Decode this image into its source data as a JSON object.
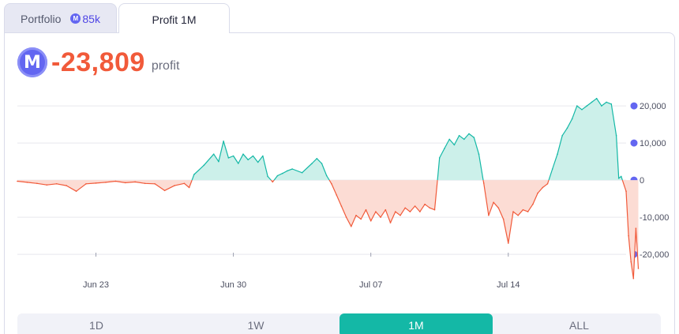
{
  "tabs": {
    "portfolio_label": "Portfolio",
    "portfolio_value": "85k",
    "profit_label": "Profit 1M"
  },
  "headline": {
    "amount": "-23,809",
    "suffix": "profit"
  },
  "colors": {
    "positive": "#14b8a6",
    "positive_fill": "#ccf0ea",
    "negative": "#f15a3a",
    "negative_fill": "#fcdcd4",
    "mana": "#6366f1"
  },
  "icons": {
    "currency": "mana-coin-icon"
  },
  "range_buttons": [
    {
      "label": "1D",
      "active": false
    },
    {
      "label": "1W",
      "active": false
    },
    {
      "label": "1M",
      "active": true
    },
    {
      "label": "ALL",
      "active": false
    }
  ],
  "chart_data": {
    "type": "area",
    "title": "",
    "xlabel": "",
    "ylabel": "",
    "x_start": "2024-06-19",
    "x_end": "2024-07-20",
    "x_ticks": [
      {
        "label": "Jun 23",
        "x": "2024-06-23"
      },
      {
        "label": "Jun 30",
        "x": "2024-06-30"
      },
      {
        "label": "Jul 07",
        "x": "2024-07-07"
      },
      {
        "label": "Jul 14",
        "x": "2024-07-14"
      }
    ],
    "y_ticks": [
      {
        "label": "20,000",
        "value": 20000
      },
      {
        "label": "10,000",
        "value": 10000
      },
      {
        "label": "0",
        "value": 0
      },
      {
        "label": "-10,000",
        "value": -10000
      },
      {
        "label": "-20,000",
        "value": -20000
      }
    ],
    "ylim": [
      -27000,
      23000
    ],
    "grid": true,
    "baseline": 0,
    "series": [
      {
        "points": [
          [
            "2024-06-19",
            -300
          ],
          [
            "2024-06-19 12:00",
            -600
          ],
          [
            "2024-06-20",
            -900
          ],
          [
            "2024-06-20 12:00",
            -1300
          ],
          [
            "2024-06-21",
            -1000
          ],
          [
            "2024-06-21 12:00",
            -1500
          ],
          [
            "2024-06-22",
            -3000
          ],
          [
            "2024-06-22 12:00",
            -1000
          ],
          [
            "2024-06-23",
            -800
          ],
          [
            "2024-06-23 12:00",
            -600
          ],
          [
            "2024-06-24",
            -300
          ],
          [
            "2024-06-24 12:00",
            -700
          ],
          [
            "2024-06-25",
            -500
          ],
          [
            "2024-06-25 12:00",
            -900
          ],
          [
            "2024-06-26",
            -1000
          ],
          [
            "2024-06-26 12:00",
            -2800
          ],
          [
            "2024-06-27",
            -1500
          ],
          [
            "2024-06-27 12:00",
            -900
          ],
          [
            "2024-06-27 18:00",
            -2000
          ],
          [
            "2024-06-28",
            1500
          ],
          [
            "2024-06-28 12:00",
            4000
          ],
          [
            "2024-06-29",
            7000
          ],
          [
            "2024-06-29 06:00",
            5000
          ],
          [
            "2024-06-29 12:00",
            10500
          ],
          [
            "2024-06-29 18:00",
            6000
          ],
          [
            "2024-06-30",
            6500
          ],
          [
            "2024-06-30 06:00",
            4500
          ],
          [
            "2024-06-30 12:00",
            7000
          ],
          [
            "2024-06-30 18:00",
            5500
          ],
          [
            "2024-07-01",
            6500
          ],
          [
            "2024-07-01 06:00",
            4800
          ],
          [
            "2024-07-01 12:00",
            6500
          ],
          [
            "2024-07-01 18:00",
            1000
          ],
          [
            "2024-07-02",
            -500
          ],
          [
            "2024-07-02 06:00",
            1200
          ],
          [
            "2024-07-02 12:00",
            1800
          ],
          [
            "2024-07-02 18:00",
            2500
          ],
          [
            "2024-07-03",
            3000
          ],
          [
            "2024-07-03 12:00",
            2000
          ],
          [
            "2024-07-04",
            4500
          ],
          [
            "2024-07-04 06:00",
            5800
          ],
          [
            "2024-07-04 12:00",
            4500
          ],
          [
            "2024-07-04 18:00",
            1200
          ],
          [
            "2024-07-05",
            -1000
          ],
          [
            "2024-07-05 06:00",
            -4000
          ],
          [
            "2024-07-05 12:00",
            -7000
          ],
          [
            "2024-07-05 18:00",
            -10000
          ],
          [
            "2024-07-06",
            -12500
          ],
          [
            "2024-07-06 06:00",
            -9500
          ],
          [
            "2024-07-06 12:00",
            -10500
          ],
          [
            "2024-07-06 18:00",
            -8000
          ],
          [
            "2024-07-07",
            -11000
          ],
          [
            "2024-07-07 06:00",
            -8500
          ],
          [
            "2024-07-07 12:00",
            -10000
          ],
          [
            "2024-07-07 18:00",
            -8000
          ],
          [
            "2024-07-08",
            -11500
          ],
          [
            "2024-07-08 06:00",
            -8500
          ],
          [
            "2024-07-08 12:00",
            -9500
          ],
          [
            "2024-07-08 18:00",
            -7500
          ],
          [
            "2024-07-09",
            -8500
          ],
          [
            "2024-07-09 06:00",
            -7000
          ],
          [
            "2024-07-09 12:00",
            -8500
          ],
          [
            "2024-07-09 18:00",
            -6500
          ],
          [
            "2024-07-10",
            -7500
          ],
          [
            "2024-07-10 06:00",
            -8000
          ],
          [
            "2024-07-10 12:00",
            6000
          ],
          [
            "2024-07-10 18:00",
            8500
          ],
          [
            "2024-07-11",
            11000
          ],
          [
            "2024-07-11 06:00",
            9500
          ],
          [
            "2024-07-11 12:00",
            12000
          ],
          [
            "2024-07-11 18:00",
            11000
          ],
          [
            "2024-07-12",
            12500
          ],
          [
            "2024-07-12 06:00",
            11500
          ],
          [
            "2024-07-12 12:00",
            7000
          ],
          [
            "2024-07-12 18:00",
            -800
          ],
          [
            "2024-07-13",
            -9500
          ],
          [
            "2024-07-13 06:00",
            -6000
          ],
          [
            "2024-07-13 12:00",
            -7500
          ],
          [
            "2024-07-13 18:00",
            -10500
          ],
          [
            "2024-07-14",
            -17000
          ],
          [
            "2024-07-14 06:00",
            -8500
          ],
          [
            "2024-07-14 12:00",
            -9500
          ],
          [
            "2024-07-14 18:00",
            -8000
          ],
          [
            "2024-07-15",
            -8500
          ],
          [
            "2024-07-15 06:00",
            -6500
          ],
          [
            "2024-07-15 12:00",
            -3500
          ],
          [
            "2024-07-15 18:00",
            -2000
          ],
          [
            "2024-07-16",
            -1000
          ],
          [
            "2024-07-16 06:00",
            3000
          ],
          [
            "2024-07-16 12:00",
            7000
          ],
          [
            "2024-07-16 18:00",
            12000
          ],
          [
            "2024-07-17",
            14000
          ],
          [
            "2024-07-17 06:00",
            16500
          ],
          [
            "2024-07-17 12:00",
            20000
          ],
          [
            "2024-07-17 18:00",
            19000
          ],
          [
            "2024-07-18",
            20000
          ],
          [
            "2024-07-18 06:00",
            21000
          ],
          [
            "2024-07-18 12:00",
            22000
          ],
          [
            "2024-07-18 18:00",
            20000
          ],
          [
            "2024-07-19",
            21000
          ],
          [
            "2024-07-19 06:00",
            20500
          ],
          [
            "2024-07-19 12:00",
            12000
          ],
          [
            "2024-07-19 15:00",
            500
          ],
          [
            "2024-07-19 18:00",
            1000
          ],
          [
            "2024-07-20",
            -3000
          ],
          [
            "2024-07-20 03:00",
            -15000
          ],
          [
            "2024-07-20 06:00",
            -22000
          ],
          [
            "2024-07-20 09:00",
            -26500
          ],
          [
            "2024-07-20 12:00",
            -13000
          ],
          [
            "2024-07-20 15:00",
            -23809
          ]
        ]
      }
    ]
  }
}
